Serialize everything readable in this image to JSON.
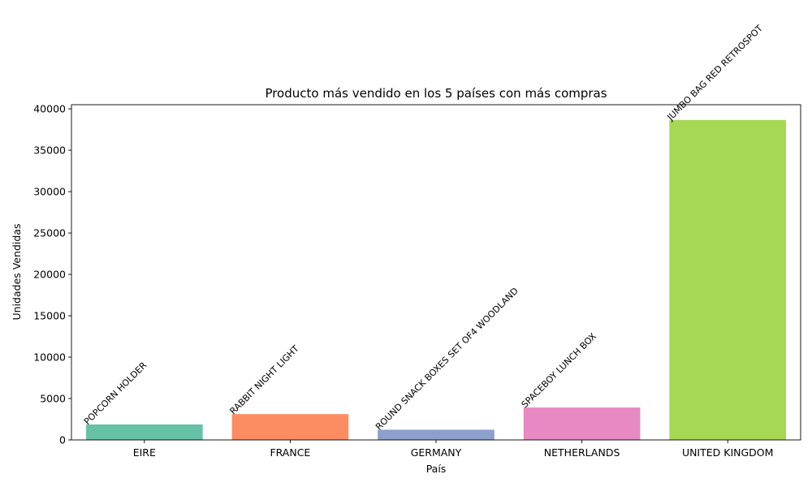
{
  "chart_data": {
    "type": "bar",
    "title": "Producto más vendido en los 5 países con más compras",
    "xlabel": "País",
    "ylabel": "Unidades Vendidas",
    "ylim": [
      0,
      40500
    ],
    "yticks": [
      0,
      5000,
      10000,
      15000,
      20000,
      25000,
      30000,
      35000,
      40000
    ],
    "grid": false,
    "categories": [
      "EIRE",
      "FRANCE",
      "GERMANY",
      "NETHERLANDS",
      "UNITED KINGDOM"
    ],
    "values": [
      1872,
      3120,
      1233,
      3917,
      38650
    ],
    "products": [
      "POPCORN HOLDER",
      "RABBIT NIGHT LIGHT",
      "ROUND SNACK BOXES SET OF4 WOODLAND",
      "SPACEBOY LUNCH BOX",
      "JUMBO BAG RED RETROSPOT"
    ],
    "colors": [
      "#66c2a5",
      "#fc8d62",
      "#8da0cb",
      "#e78ac3",
      "#a6d854"
    ]
  }
}
